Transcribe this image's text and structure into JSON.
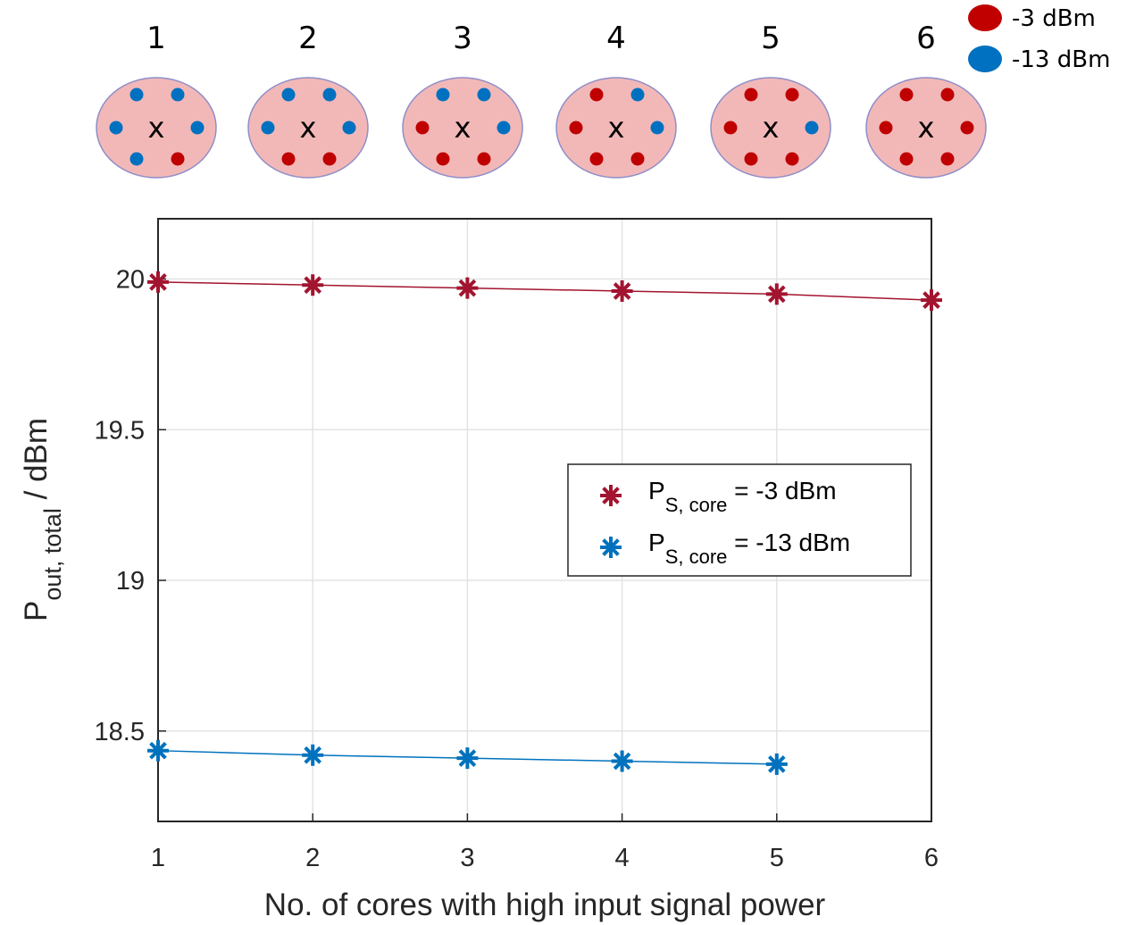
{
  "diagram": {
    "fibers": [
      {
        "label": "1",
        "center": "x",
        "cores": [
          "#0070c0",
          "#0070c0",
          "#0070c0",
          "#0070c0",
          "#0070c0",
          "#c00000"
        ]
      },
      {
        "label": "2",
        "center": "x",
        "cores": [
          "#0070c0",
          "#0070c0",
          "#0070c0",
          "#0070c0",
          "#c00000",
          "#c00000"
        ]
      },
      {
        "label": "3",
        "center": "x",
        "cores": [
          "#0070c0",
          "#0070c0",
          "#c00000",
          "#0070c0",
          "#c00000",
          "#c00000"
        ]
      },
      {
        "label": "4",
        "center": "x",
        "cores": [
          "#c00000",
          "#0070c0",
          "#c00000",
          "#0070c0",
          "#c00000",
          "#c00000"
        ]
      },
      {
        "label": "5",
        "center": "x",
        "cores": [
          "#c00000",
          "#c00000",
          "#c00000",
          "#0070c0",
          "#c00000",
          "#c00000"
        ]
      },
      {
        "label": "6",
        "center": "x",
        "cores": [
          "#c00000",
          "#c00000",
          "#c00000",
          "#c00000",
          "#c00000",
          "#c00000"
        ]
      }
    ],
    "legend": [
      {
        "label": "-3 dBm",
        "color": "#c00000"
      },
      {
        "label": "-13 dBm",
        "color": "#0070c0"
      }
    ]
  },
  "chart_data": {
    "type": "line",
    "xlabel": "No. of cores with high input signal power",
    "ylabel": [
      "P",
      "out, total",
      " / dBm"
    ],
    "x": [
      1,
      2,
      3,
      4,
      5,
      6
    ],
    "series": [
      {
        "name": [
          "P",
          "S, core",
          " = -3 dBm"
        ],
        "color": "#a2142f",
        "values": [
          19.99,
          19.98,
          19.97,
          19.96,
          19.95,
          19.93
        ]
      },
      {
        "name": [
          "P",
          "S, core",
          " = -13 dBm"
        ],
        "color": "#0072bd",
        "values": [
          18.435,
          18.42,
          18.41,
          18.4,
          18.39,
          null
        ]
      }
    ],
    "xlim": [
      1,
      6
    ],
    "xticks": [
      1,
      2,
      3,
      4,
      5,
      6
    ],
    "ylim": [
      18.2,
      20.2
    ],
    "yticks": [
      18.5,
      19,
      19.5,
      20
    ],
    "grid": true,
    "legend_position": "right"
  }
}
